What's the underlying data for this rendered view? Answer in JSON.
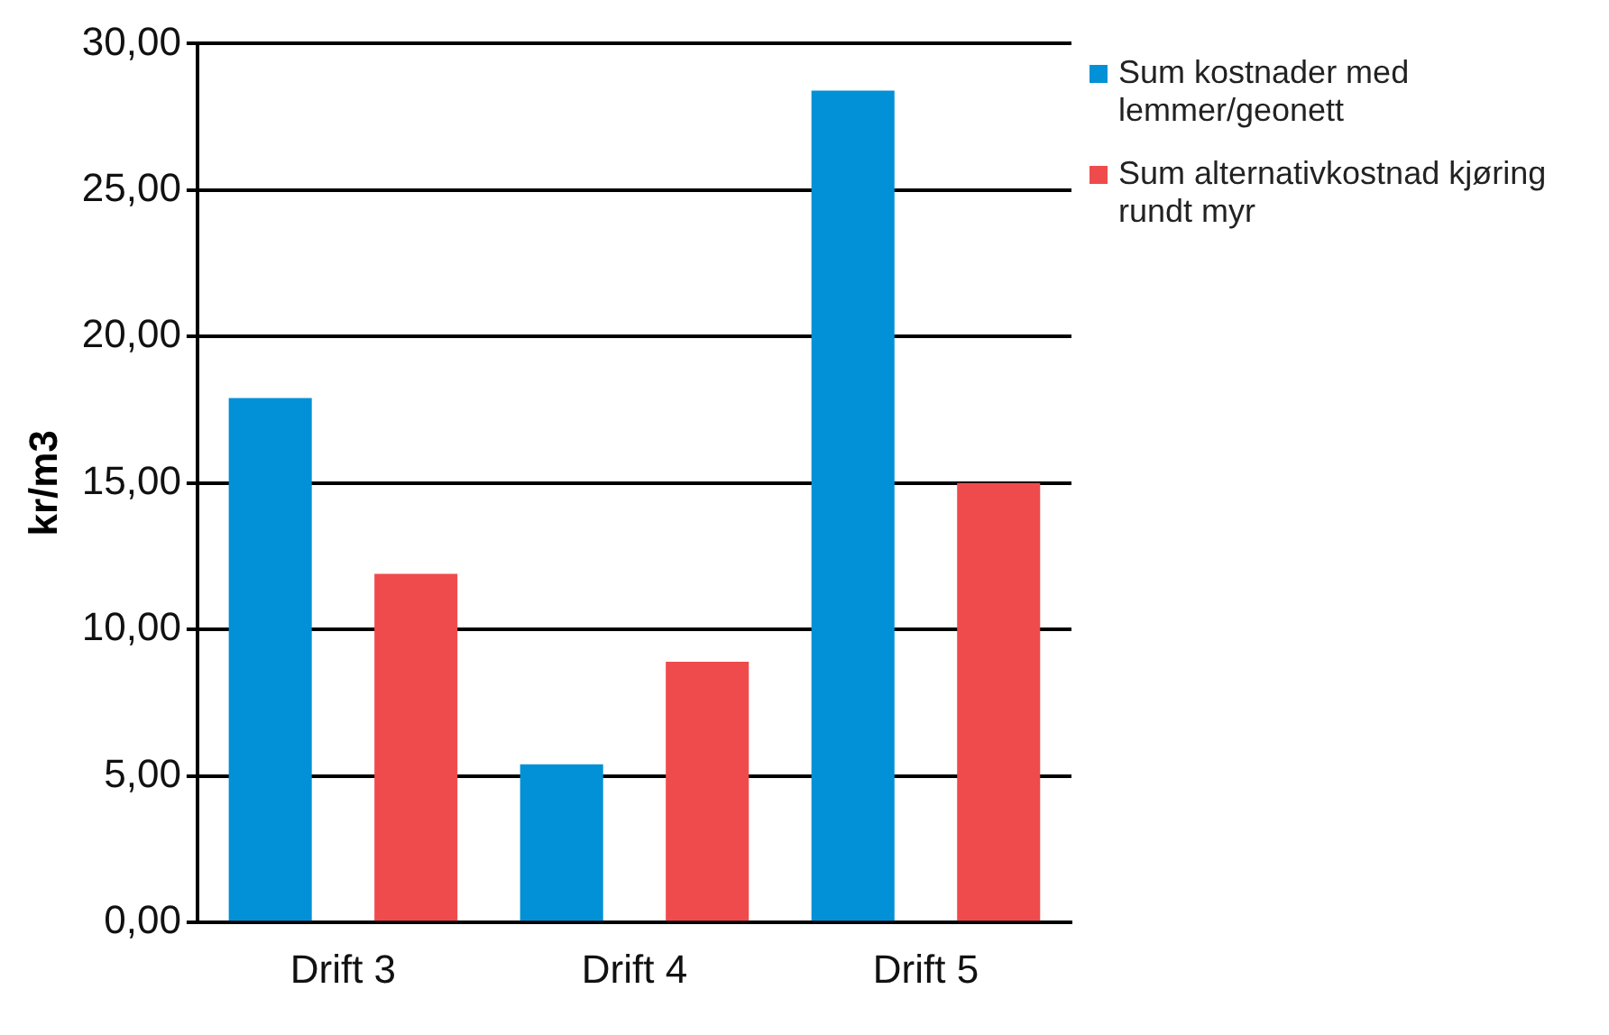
{
  "chart_data": {
    "type": "bar",
    "ylabel": "kr/m3",
    "categories": [
      "Drift 3",
      "Drift 4",
      "Drift 5"
    ],
    "series": [
      {
        "name": "Sum kostnader med lemmer/geonett",
        "color": "#0291d6",
        "values": [
          17.9,
          5.4,
          28.4
        ]
      },
      {
        "name": "Sum alternativkostnad kjøring rundt myr",
        "color": "#ef4b4c",
        "values": [
          11.9,
          8.9,
          15.0
        ]
      }
    ],
    "ylim": [
      0,
      30
    ],
    "yticks": [
      {
        "value": 0,
        "label": "0,00"
      },
      {
        "value": 5,
        "label": "5,00"
      },
      {
        "value": 10,
        "label": "10,00"
      },
      {
        "value": 15,
        "label": "15,00"
      },
      {
        "value": 20,
        "label": "20,00"
      },
      {
        "value": 25,
        "label": "25,00"
      },
      {
        "value": 30,
        "label": "30,00"
      }
    ],
    "grid": "y",
    "legend": "right"
  }
}
